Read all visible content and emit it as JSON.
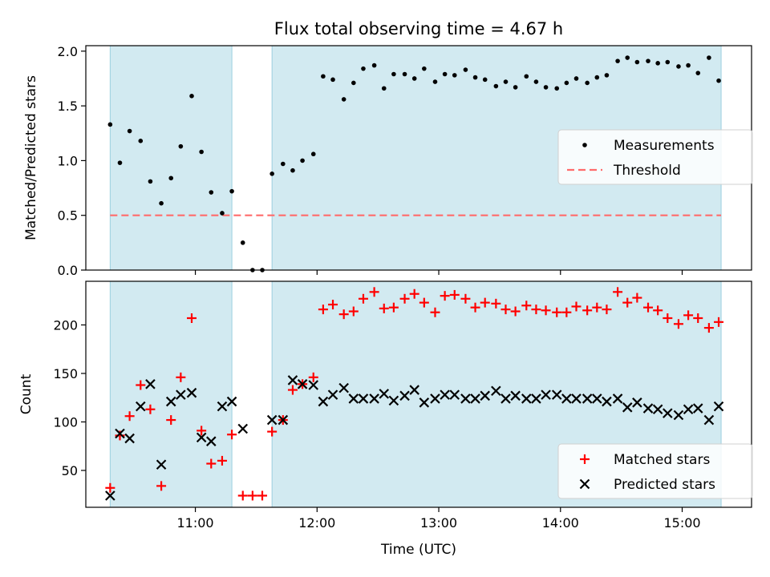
{
  "chart_data": {
    "type": "scatter",
    "title": "Flux total observing time = 4.67 h",
    "x_axis": {
      "label": "Time (UTC)",
      "ticks": [
        "11:00",
        "12:00",
        "13:00",
        "14:00",
        "15:00"
      ],
      "tick_hours": [
        11,
        12,
        13,
        14,
        15
      ],
      "range_hours": [
        10.1,
        15.57
      ]
    },
    "observing_windows_hours": [
      [
        10.3,
        11.3
      ],
      [
        11.63,
        15.32
      ]
    ],
    "window_color": "#add8e6",
    "panels": [
      {
        "ylabel": "Matched/Predicted stars",
        "ylim": [
          0.0,
          2.05
        ],
        "yticks": [
          0.0,
          0.5,
          1.0,
          1.5,
          2.0
        ],
        "ytick_labels": [
          "0.0",
          "0.5",
          "1.0",
          "1.5",
          "2.0"
        ],
        "legend": {
          "position": "center-right",
          "entries": [
            {
              "label": "Measurements",
              "marker": "dot",
              "color": "#000000"
            },
            {
              "label": "Threshold",
              "marker": "dashed-line",
              "color": "#ff6b6b"
            }
          ]
        },
        "threshold": {
          "y": 0.5,
          "x_range_hours": [
            10.3,
            15.32
          ]
        },
        "series": [
          {
            "name": "Measurements",
            "marker": "dot",
            "color": "#000000",
            "points": [
              [
                10.3,
                1.33
              ],
              [
                10.38,
                0.98
              ],
              [
                10.46,
                1.27
              ],
              [
                10.55,
                1.18
              ],
              [
                10.63,
                0.81
              ],
              [
                10.72,
                0.61
              ],
              [
                10.8,
                0.84
              ],
              [
                10.88,
                1.13
              ],
              [
                10.97,
                1.59
              ],
              [
                11.05,
                1.08
              ],
              [
                11.13,
                0.71
              ],
              [
                11.22,
                0.52
              ],
              [
                11.3,
                0.72
              ],
              [
                11.39,
                0.25
              ],
              [
                11.47,
                0.0
              ],
              [
                11.55,
                0.0
              ],
              [
                11.63,
                0.88
              ],
              [
                11.72,
                0.97
              ],
              [
                11.8,
                0.91
              ],
              [
                11.88,
                1.0
              ],
              [
                11.97,
                1.06
              ],
              [
                12.05,
                1.77
              ],
              [
                12.13,
                1.74
              ],
              [
                12.22,
                1.56
              ],
              [
                12.3,
                1.71
              ],
              [
                12.38,
                1.84
              ],
              [
                12.47,
                1.87
              ],
              [
                12.55,
                1.66
              ],
              [
                12.63,
                1.79
              ],
              [
                12.72,
                1.79
              ],
              [
                12.8,
                1.75
              ],
              [
                12.88,
                1.84
              ],
              [
                12.97,
                1.72
              ],
              [
                13.05,
                1.79
              ],
              [
                13.13,
                1.78
              ],
              [
                13.22,
                1.83
              ],
              [
                13.3,
                1.76
              ],
              [
                13.38,
                1.74
              ],
              [
                13.47,
                1.68
              ],
              [
                13.55,
                1.72
              ],
              [
                13.63,
                1.67
              ],
              [
                13.72,
                1.77
              ],
              [
                13.8,
                1.72
              ],
              [
                13.88,
                1.67
              ],
              [
                13.97,
                1.66
              ],
              [
                14.05,
                1.71
              ],
              [
                14.13,
                1.75
              ],
              [
                14.22,
                1.71
              ],
              [
                14.3,
                1.76
              ],
              [
                14.38,
                1.78
              ],
              [
                14.47,
                1.91
              ],
              [
                14.55,
                1.94
              ],
              [
                14.63,
                1.9
              ],
              [
                14.72,
                1.91
              ],
              [
                14.8,
                1.89
              ],
              [
                14.88,
                1.9
              ],
              [
                14.97,
                1.86
              ],
              [
                15.05,
                1.87
              ],
              [
                15.13,
                1.8
              ],
              [
                15.22,
                1.94
              ],
              [
                15.3,
                1.73
              ]
            ]
          }
        ]
      },
      {
        "ylabel": "Count",
        "ylim": [
          12,
          245
        ],
        "yticks": [
          50,
          100,
          150,
          200
        ],
        "ytick_labels": [
          "50",
          "100",
          "150",
          "200"
        ],
        "legend": {
          "position": "lower-right",
          "entries": [
            {
              "label": "Matched stars",
              "marker": "plus",
              "color": "#ff0000"
            },
            {
              "label": "Predicted stars",
              "marker": "x",
              "color": "#000000"
            }
          ]
        },
        "series": [
          {
            "name": "Matched stars",
            "marker": "plus",
            "color": "#ff0000",
            "points": [
              [
                10.3,
                32
              ],
              [
                10.38,
                86
              ],
              [
                10.46,
                106
              ],
              [
                10.55,
                138
              ],
              [
                10.63,
                113
              ],
              [
                10.72,
                34
              ],
              [
                10.8,
                102
              ],
              [
                10.88,
                146
              ],
              [
                10.97,
                207
              ],
              [
                11.05,
                91
              ],
              [
                11.13,
                57
              ],
              [
                11.22,
                60
              ],
              [
                11.3,
                87
              ],
              [
                11.39,
                24
              ],
              [
                11.47,
                24
              ],
              [
                11.55,
                24
              ],
              [
                11.63,
                90
              ],
              [
                11.72,
                102
              ],
              [
                11.8,
                133
              ],
              [
                11.88,
                139
              ],
              [
                11.97,
                146
              ],
              [
                12.05,
                216
              ],
              [
                12.13,
                221
              ],
              [
                12.22,
                211
              ],
              [
                12.3,
                214
              ],
              [
                12.38,
                227
              ],
              [
                12.47,
                234
              ],
              [
                12.55,
                217
              ],
              [
                12.63,
                218
              ],
              [
                12.72,
                227
              ],
              [
                12.8,
                232
              ],
              [
                12.88,
                223
              ],
              [
                12.97,
                213
              ],
              [
                13.05,
                230
              ],
              [
                13.13,
                231
              ],
              [
                13.22,
                227
              ],
              [
                13.3,
                218
              ],
              [
                13.38,
                223
              ],
              [
                13.47,
                222
              ],
              [
                13.55,
                216
              ],
              [
                13.63,
                214
              ],
              [
                13.72,
                220
              ],
              [
                13.8,
                216
              ],
              [
                13.88,
                215
              ],
              [
                13.97,
                213
              ],
              [
                14.05,
                213
              ],
              [
                14.13,
                219
              ],
              [
                14.22,
                215
              ],
              [
                14.3,
                218
              ],
              [
                14.38,
                216
              ],
              [
                14.47,
                234
              ],
              [
                14.55,
                223
              ],
              [
                14.63,
                228
              ],
              [
                14.72,
                218
              ],
              [
                14.8,
                215
              ],
              [
                14.88,
                207
              ],
              [
                14.97,
                201
              ],
              [
                15.05,
                210
              ],
              [
                15.13,
                207
              ],
              [
                15.22,
                197
              ],
              [
                15.3,
                203
              ]
            ]
          },
          {
            "name": "Predicted stars",
            "marker": "x",
            "color": "#000000",
            "points": [
              [
                10.3,
                24
              ],
              [
                10.38,
                88
              ],
              [
                10.46,
                83
              ],
              [
                10.55,
                116
              ],
              [
                10.63,
                139
              ],
              [
                10.72,
                56
              ],
              [
                10.8,
                121
              ],
              [
                10.88,
                128
              ],
              [
                10.97,
                130
              ],
              [
                11.05,
                84
              ],
              [
                11.13,
                80
              ],
              [
                11.22,
                116
              ],
              [
                11.3,
                121
              ],
              [
                11.39,
                93
              ],
              [
                11.63,
                102
              ],
              [
                11.72,
                102
              ],
              [
                11.8,
                143
              ],
              [
                11.88,
                139
              ],
              [
                11.97,
                138
              ],
              [
                12.05,
                121
              ],
              [
                12.13,
                128
              ],
              [
                12.22,
                135
              ],
              [
                12.3,
                124
              ],
              [
                12.38,
                124
              ],
              [
                12.47,
                124
              ],
              [
                12.55,
                129
              ],
              [
                12.63,
                122
              ],
              [
                12.72,
                127
              ],
              [
                12.8,
                133
              ],
              [
                12.88,
                120
              ],
              [
                12.97,
                124
              ],
              [
                13.05,
                128
              ],
              [
                13.13,
                128
              ],
              [
                13.22,
                124
              ],
              [
                13.3,
                124
              ],
              [
                13.38,
                127
              ],
              [
                13.47,
                132
              ],
              [
                13.55,
                124
              ],
              [
                13.63,
                127
              ],
              [
                13.72,
                124
              ],
              [
                13.8,
                124
              ],
              [
                13.88,
                128
              ],
              [
                13.97,
                128
              ],
              [
                14.05,
                124
              ],
              [
                14.13,
                124
              ],
              [
                14.22,
                124
              ],
              [
                14.3,
                124
              ],
              [
                14.38,
                121
              ],
              [
                14.47,
                124
              ],
              [
                14.55,
                115
              ],
              [
                14.63,
                120
              ],
              [
                14.72,
                114
              ],
              [
                14.8,
                113
              ],
              [
                14.88,
                109
              ],
              [
                14.97,
                107
              ],
              [
                15.05,
                113
              ],
              [
                15.13,
                114
              ],
              [
                15.22,
                102
              ],
              [
                15.3,
                116
              ]
            ]
          }
        ]
      }
    ]
  }
}
